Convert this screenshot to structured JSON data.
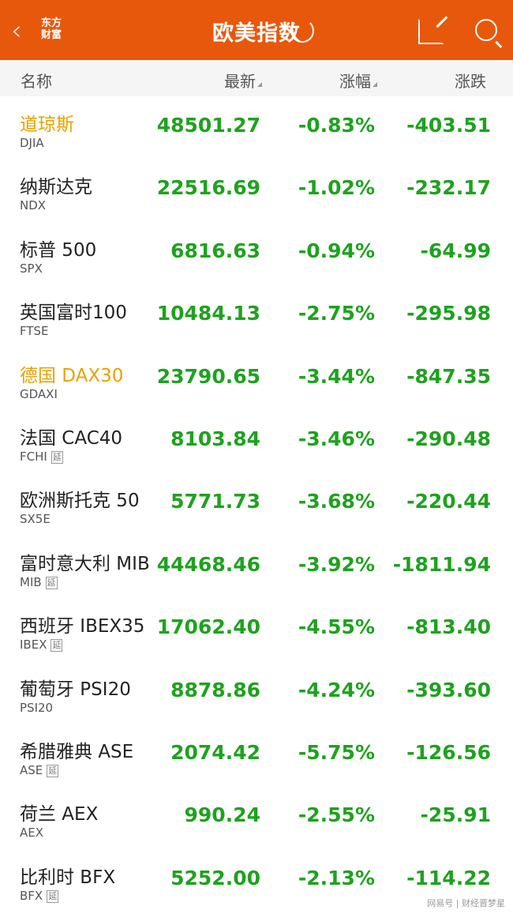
{
  "header": {
    "title": "欧美指数",
    "logo": "东方财富",
    "back_icon": "chevron-left-icon",
    "refresh_icon": "refresh-icon",
    "share_icon": "share-icon",
    "search_icon": "search-icon"
  },
  "columns": {
    "name": "名称",
    "latest": "最新",
    "change_pct": "涨幅",
    "change": "涨跌"
  },
  "colors": {
    "header": "#e8580c",
    "down": "#1ea21e",
    "highlight": "#e8a200"
  },
  "rows": [
    {
      "name": "道琼斯",
      "code": "DJIA",
      "delay": "",
      "latest": "48501.27",
      "pct": "-0.83%",
      "chg": "-403.51",
      "hl": true
    },
    {
      "name": "纳斯达克",
      "code": "NDX",
      "delay": "",
      "latest": "22516.69",
      "pct": "-1.02%",
      "chg": "-232.17",
      "hl": false
    },
    {
      "name": "标普 500",
      "code": "SPX",
      "delay": "",
      "latest": "6816.63",
      "pct": "-0.94%",
      "chg": "-64.99",
      "hl": false
    },
    {
      "name": "英国富时100",
      "code": "FTSE",
      "delay": "",
      "latest": "10484.13",
      "pct": "-2.75%",
      "chg": "-295.98",
      "hl": false
    },
    {
      "name": "德国 DAX30",
      "code": "GDAXI",
      "delay": "",
      "latest": "23790.65",
      "pct": "-3.44%",
      "chg": "-847.35",
      "hl": true
    },
    {
      "name": "法国 CAC40",
      "code": "FCHI",
      "delay": "延",
      "latest": "8103.84",
      "pct": "-3.46%",
      "chg": "-290.48",
      "hl": false
    },
    {
      "name": "欧洲斯托克 50",
      "code": "SX5E",
      "delay": "",
      "latest": "5771.73",
      "pct": "-3.68%",
      "chg": "-220.44",
      "hl": false
    },
    {
      "name": "富时意大利 MIB",
      "code": "MIB",
      "delay": "延",
      "latest": "44468.46",
      "pct": "-3.92%",
      "chg": "-1811.94",
      "hl": false
    },
    {
      "name": "西班牙 IBEX35",
      "code": "IBEX",
      "delay": "延",
      "latest": "17062.40",
      "pct": "-4.55%",
      "chg": "-813.40",
      "hl": false
    },
    {
      "name": "葡萄牙 PSI20",
      "code": "PSI20",
      "delay": "",
      "latest": "8878.86",
      "pct": "-4.24%",
      "chg": "-393.60",
      "hl": false
    },
    {
      "name": "希腊雅典 ASE",
      "code": "ASE",
      "delay": "延",
      "latest": "2074.42",
      "pct": "-5.75%",
      "chg": "-126.56",
      "hl": false
    },
    {
      "name": "荷兰 AEX",
      "code": "AEX",
      "delay": "",
      "latest": "990.24",
      "pct": "-2.55%",
      "chg": "-25.91",
      "hl": false
    },
    {
      "name": "比利时 BFX",
      "code": "BFX",
      "delay": "延",
      "latest": "5252.00",
      "pct": "-2.13%",
      "chg": "-114.22",
      "hl": false
    }
  ],
  "watermark": "网易号 | 财经晋梦星"
}
